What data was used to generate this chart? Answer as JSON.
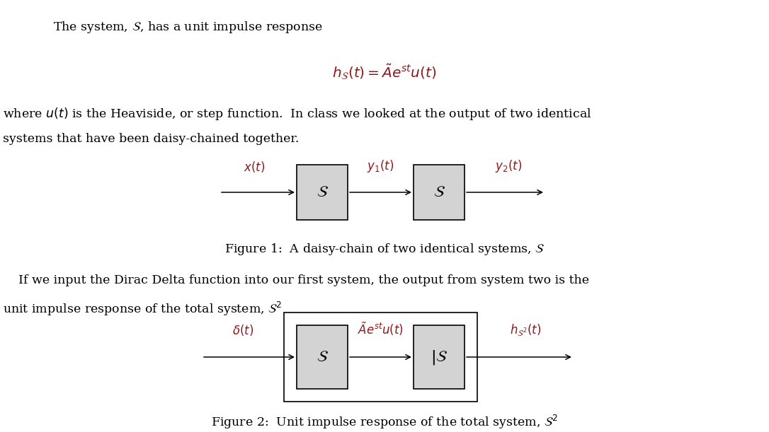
{
  "background_color": "#ffffff",
  "fig_width": 10.86,
  "fig_height": 6.11,
  "dpi": 100,
  "text_color": "#000000",
  "math_color": "#8B1A1A",
  "box_facecolor": "#d3d3d3",
  "box_edgecolor": "#000000",
  "outer_box_facecolor": "#ffffff",
  "outer_box_edgecolor": "#000000",
  "line1": "The system, $\\mathcal{S}$, has a unit impulse response",
  "eq1": "$h_{\\mathcal{S}}(t) = \\tilde{A}e^{st}u(t)$",
  "para1_l1": "where $u(t)$ is the Heaviside, or step function.  In class we looked at the output of two identical",
  "para1_l2": "systems that have been daisy-chained together.",
  "fig1_cap": "Figure 1:  A daisy-chain of two identical systems, $\\mathcal{S}$",
  "para2_l1": "    If we input the Dirac Delta function into our first system, the output from system two is the",
  "para2_l2": "unit impulse response of the total system, $\\mathcal{S}^2$",
  "fig2_cap": "Figure 2:  Unit impulse response of the total system, $\\mathcal{S}^2$",
  "label_xt": "$x(t)$",
  "label_y1t": "$y_1(t)$",
  "label_y2t": "$y_2(t)$",
  "label_delta": "$\\delta(t)$",
  "label_Aest": "$\\tilde{A}e^{st}u(t)$",
  "label_hs2": "$h_{\\mathcal{S}^2}(t)$",
  "label_S": "$\\mathcal{S}$",
  "label_barS": "$|\\mathcal{S}$"
}
